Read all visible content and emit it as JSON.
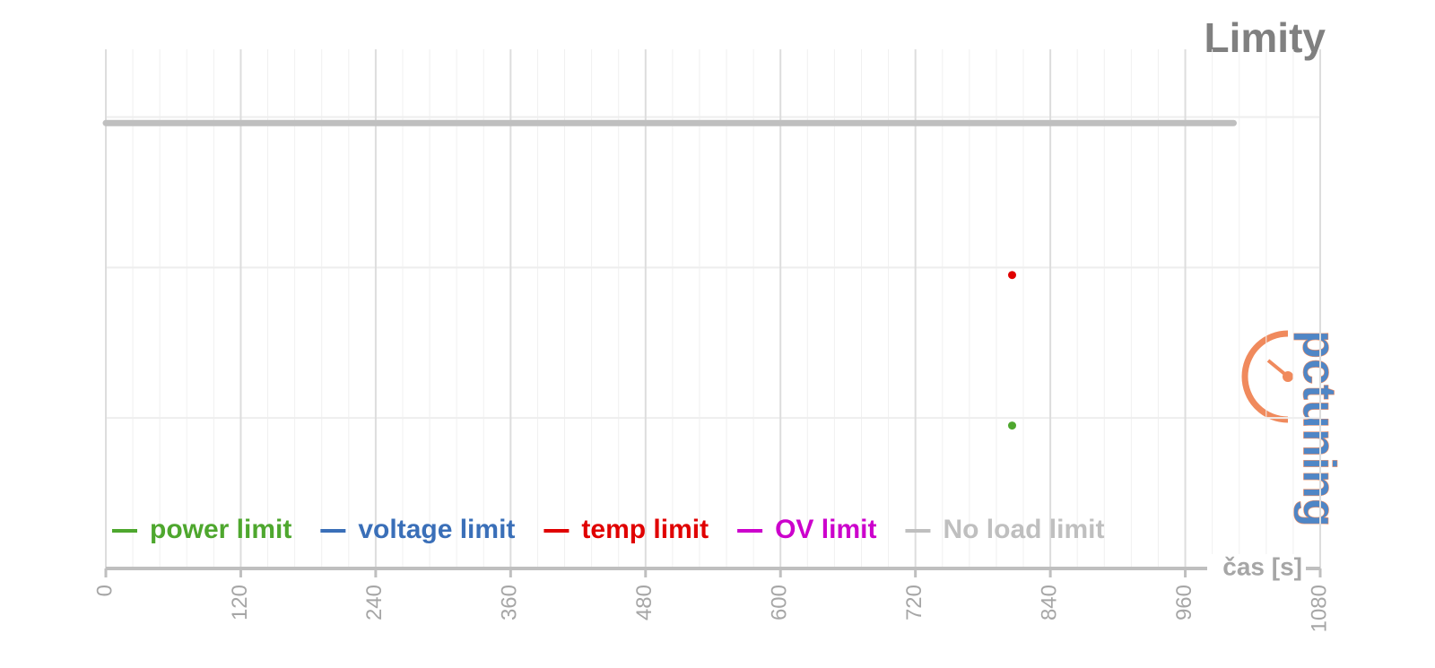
{
  "chart_data": {
    "type": "line",
    "title": "Limity",
    "x_label": "čas [s]",
    "watermark": "pctuning",
    "xlim": [
      0,
      1080
    ],
    "xticks": [
      0,
      120,
      240,
      360,
      480,
      600,
      720,
      840,
      960,
      1080
    ],
    "ylim": [
      0,
      3.45
    ],
    "yticks": [
      0,
      1,
      2,
      3
    ],
    "grid": true,
    "legend": "bottom",
    "series": [
      {
        "name": "power limit",
        "color": "#4ea72e",
        "x": [
          806
        ],
        "values": [
          0.95
        ]
      },
      {
        "name": "voltage limit",
        "color": "#3a6fb8",
        "x": [],
        "values": []
      },
      {
        "name": "temp limit",
        "color": "#e00000",
        "x": [
          806
        ],
        "values": [
          1.95
        ]
      },
      {
        "name": "OV limit",
        "color": "#cc00cc",
        "x": [],
        "values": []
      },
      {
        "name": "No load limit",
        "color": "#bfbfbf",
        "x": [
          0,
          1003
        ],
        "values": [
          2.96,
          2.96
        ]
      }
    ]
  }
}
